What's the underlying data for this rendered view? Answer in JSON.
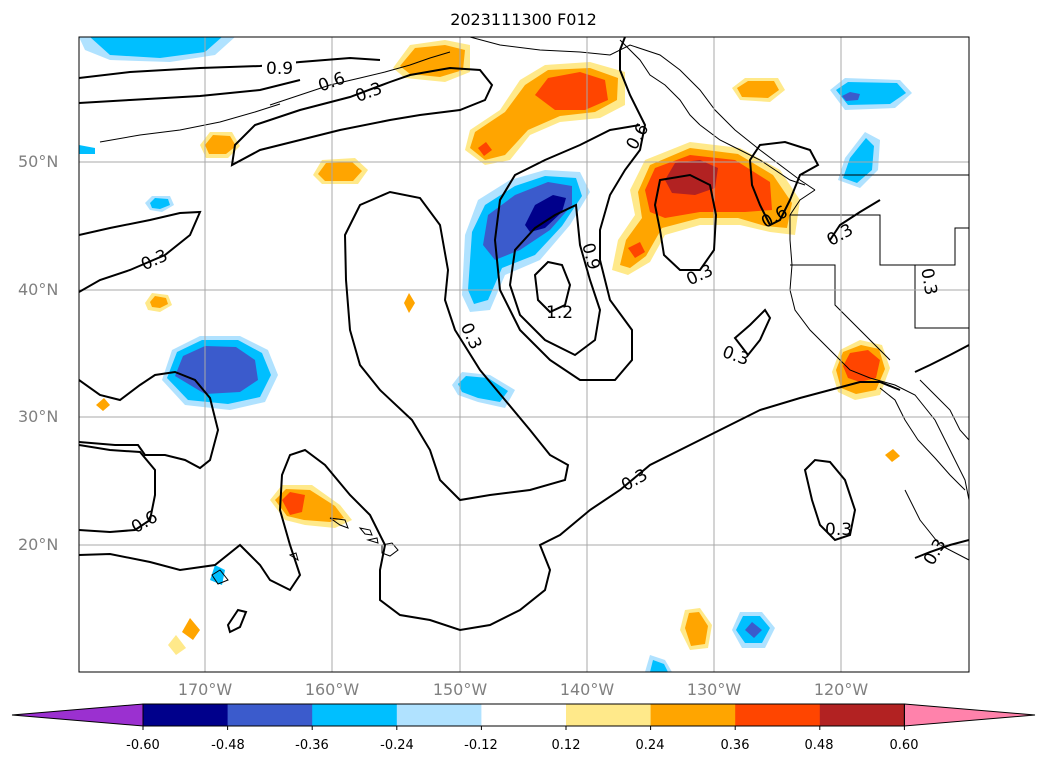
{
  "title": "2023111300 F012",
  "latitude_labels": [
    "50°N",
    "40°N",
    "30°N",
    "20°N"
  ],
  "longitude_labels": [
    "170°W",
    "160°W",
    "150°W",
    "140°W",
    "130°W",
    "120°W"
  ],
  "contour_labels": [
    "0.9",
    "0.6",
    "0.3",
    "0.3",
    "0.6",
    "0.9",
    "1.2",
    "0.3",
    "0.3",
    "0.6",
    "0.3",
    "0.3",
    "0.3",
    "0.6",
    "0.3",
    "0.3",
    "0.3"
  ],
  "colorbar": {
    "ticks": [
      "-0.60",
      "-0.48",
      "-0.36",
      "-0.24",
      "-0.12",
      "0.12",
      "0.24",
      "0.36",
      "0.48",
      "0.60"
    ],
    "colors": [
      "#9b30d0",
      "#00008b",
      "#3b5bcc",
      "#00bfff",
      "#b0e2ff",
      "#ffffff",
      "#ffe98a",
      "#ffa500",
      "#ff4500",
      "#b22222",
      "#ff82ab"
    ]
  },
  "colors": {
    "land_line": "#000000",
    "grid": "#a8a8a8",
    "axis_label": "#808080"
  }
}
